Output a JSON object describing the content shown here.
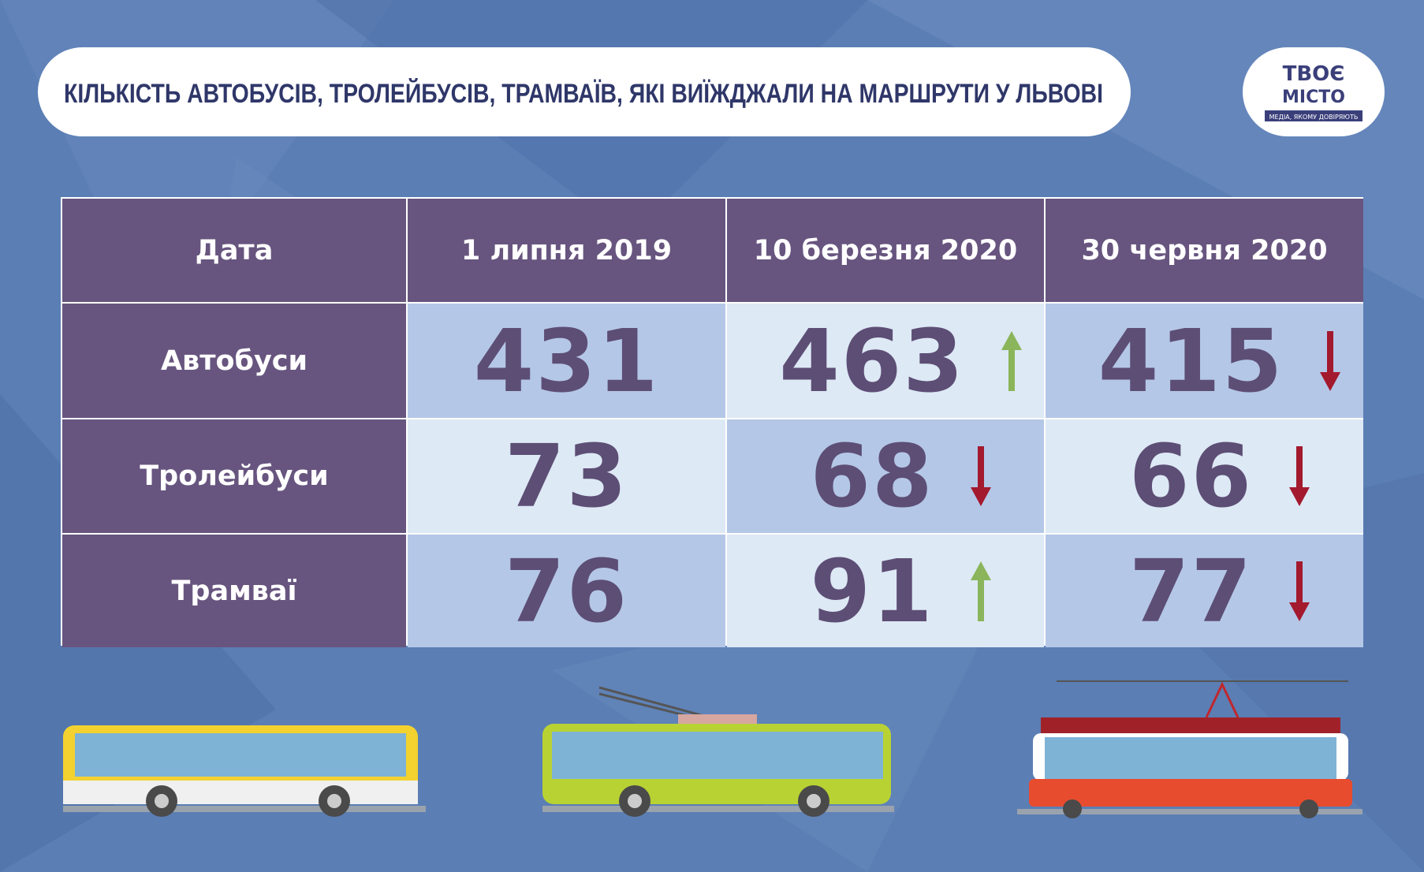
{
  "header": {
    "title": "КІЛЬКІСТЬ АВТОБУСІВ, ТРОЛЕЙБУСІВ, ТРАМВАЇВ, ЯКІ ВИЇЖДЖАЛИ НА МАРШРУТИ У ЛЬВОВІ"
  },
  "logo": {
    "line1": "ТВОЄ",
    "line2": "МІСТО",
    "tagline": "МЕДІА, ЯКОМУ ДОВІРЯЮТЬ"
  },
  "table": {
    "columns": [
      "Дата",
      "1 липня 2019",
      "10 березня 2020",
      "30 червня 2020"
    ],
    "rows": [
      {
        "label": "Автобуси",
        "values": [
          431,
          463,
          415
        ],
        "trends": [
          "up",
          "down"
        ]
      },
      {
        "label": "Тролейбуси",
        "values": [
          73,
          68,
          66
        ],
        "trends": [
          "down",
          "down"
        ]
      },
      {
        "label": "Трамваї",
        "values": [
          76,
          91,
          77
        ],
        "trends": [
          "up",
          "down"
        ]
      }
    ]
  }
}
